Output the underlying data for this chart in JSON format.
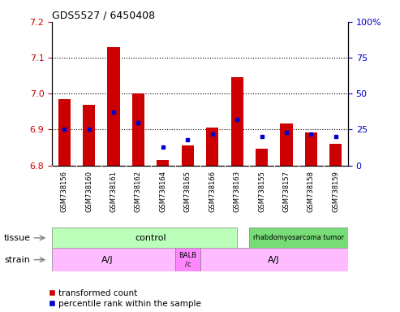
{
  "title": "GDS5527 / 6450408",
  "samples": [
    "GSM738156",
    "GSM738160",
    "GSM738161",
    "GSM738162",
    "GSM738164",
    "GSM738165",
    "GSM738166",
    "GSM738163",
    "GSM738155",
    "GSM738157",
    "GSM738158",
    "GSM738159"
  ],
  "red_values": [
    6.985,
    6.968,
    7.13,
    7.0,
    6.815,
    6.855,
    6.905,
    7.045,
    6.847,
    6.916,
    6.892,
    6.86
  ],
  "blue_values_pct": [
    25,
    25,
    37,
    30,
    13,
    18,
    22,
    32,
    20,
    23,
    22,
    20
  ],
  "ymin": 6.8,
  "ymax": 7.2,
  "y_ticks": [
    6.8,
    6.9,
    7.0,
    7.1,
    7.2
  ],
  "right_yticks": [
    0,
    25,
    50,
    75,
    100
  ],
  "bar_color": "#cc0000",
  "dot_color": "#0000cc",
  "bar_width": 0.5,
  "tick_label_color_left": "#cc0000",
  "tick_label_color_right": "#0000cc",
  "control_color": "#bbffbb",
  "rhab_color": "#77dd77",
  "strain_color": "#ffbbff",
  "balb_color": "#ff88ff",
  "xticklabel_bg": "#cccccc",
  "legend_red_label": "transformed count",
  "legend_blue_label": "percentile rank within the sample",
  "tissue_text_left": "control",
  "tissue_text_right": "rhabdomyosarcoma tumor",
  "strain_text_left": "A/J",
  "strain_text_mid": "BALB\n/c",
  "strain_text_right": "A/J",
  "tissue_label": "tissue",
  "strain_label": "strain"
}
